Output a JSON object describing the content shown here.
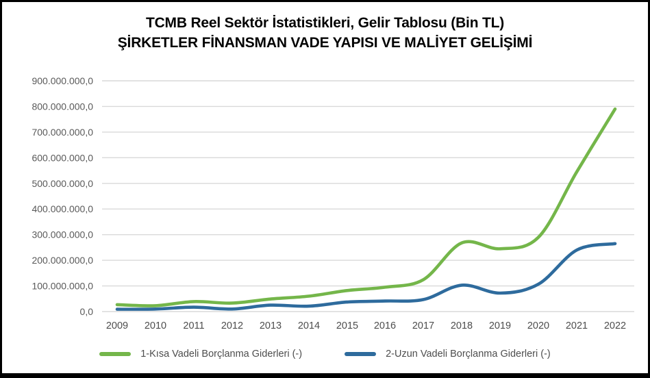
{
  "title": {
    "line1": "TCMB Reel Sektör İstatistikleri, Gelir Tablosu (Bin TL)",
    "line2": "ŞİRKETLER FİNANSMAN VADE YAPISI VE MALİYET GELİŞİMİ"
  },
  "chart_data": {
    "type": "line",
    "smooth": true,
    "title": "TCMB Reel Sektör İstatistikleri, Gelir Tablosu (Bin TL) — ŞİRKETLER FİNANSMAN VADE YAPISI VE MALİYET GELİŞİMİ",
    "categories": [
      "2009",
      "2010",
      "2011",
      "2012",
      "2013",
      "2014",
      "2015",
      "2016",
      "2017",
      "2018",
      "2019",
      "2020",
      "2021",
      "2022"
    ],
    "series": [
      {
        "name": "1-Kısa Vadeli Borçlanma Giderleri (-)",
        "color": "#74b64a",
        "values": [
          27000000,
          23000000,
          39000000,
          33000000,
          49000000,
          60000000,
          82000000,
          95000000,
          125000000,
          268000000,
          245000000,
          290000000,
          545000000,
          790000000
        ]
      },
      {
        "name": "2-Uzun Vadeli Borçlanma Giderleri (-)",
        "color": "#2e6b9d",
        "values": [
          9000000,
          10000000,
          17000000,
          10000000,
          25000000,
          21000000,
          37000000,
          41000000,
          47000000,
          103000000,
          72000000,
          107000000,
          240000000,
          265000000
        ]
      }
    ],
    "xlabel": "",
    "ylabel": "",
    "ylim": [
      0,
      900000000
    ],
    "y_tick_step": 100000000,
    "y_tick_labels": [
      "0,0",
      "100.000.000,0",
      "200.000.000,0",
      "300.000.000,0",
      "400.000.000,0",
      "500.000.000,0",
      "600.000.000,0",
      "700.000.000,0",
      "800.000.000,0",
      "900.000.000,0"
    ],
    "grid": true,
    "gridline_color": "#d9d9d9",
    "axis_tick_color": "#595959",
    "legend_position": "bottom"
  }
}
